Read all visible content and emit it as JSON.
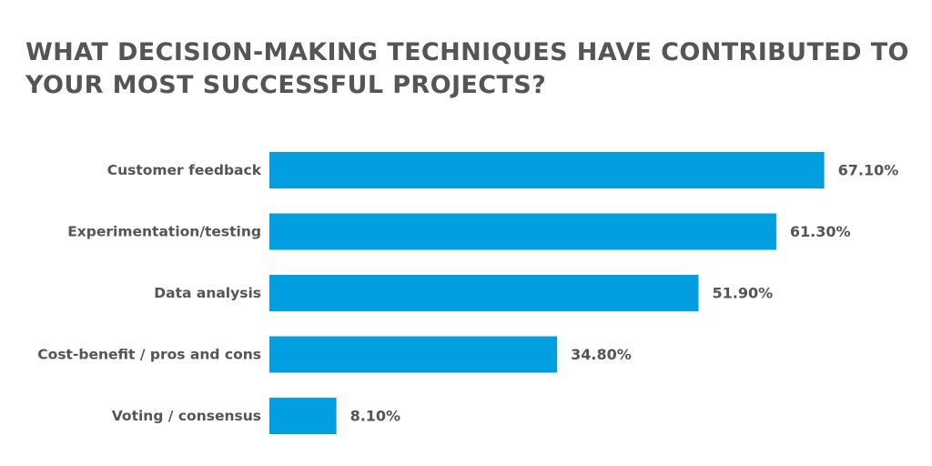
{
  "chart_data": {
    "type": "bar",
    "orientation": "horizontal",
    "title": "WHAT DECISION-MAKING TECHNIQUES HAVE CONTRIBUTED TO YOUR MOST SUCCESSFUL PROJECTS?",
    "categories": [
      "Customer feedback",
      "Experimentation/testing",
      "Data analysis",
      "Cost-benefit / pros and cons",
      "Voting / consensus"
    ],
    "values": [
      67.1,
      61.3,
      51.9,
      34.8,
      8.1
    ],
    "value_labels": [
      "67.10%",
      "61.30%",
      "51.90%",
      "34.80%",
      "8.10%"
    ],
    "xlim": [
      0,
      100
    ],
    "grid": false,
    "legend": "none",
    "bar_color": "#019fdf"
  }
}
